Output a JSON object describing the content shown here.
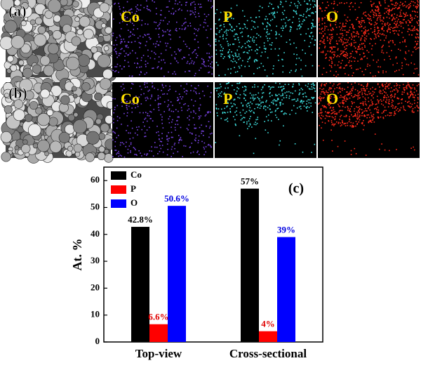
{
  "panels": {
    "rows": [
      {
        "label": "(a)",
        "maps": [
          "Co",
          "P",
          "O"
        ]
      },
      {
        "label": "(b)",
        "maps": [
          "Co",
          "P",
          "O"
        ]
      }
    ],
    "map_colors": [
      "#7a44e6",
      "#3fe0e0",
      "#ff2a1a"
    ]
  },
  "chart_data": {
    "type": "bar",
    "annotation": "(c)",
    "y_label": "At. %",
    "categories": [
      "Top-view",
      "Cross-sectional"
    ],
    "series": [
      {
        "name": "Co",
        "color": "#000000",
        "label_color": "#000000",
        "values": [
          42.8,
          57
        ],
        "value_labels": [
          "42.8%",
          "57%"
        ]
      },
      {
        "name": "P",
        "color": "#ff0000",
        "label_color": "#e00000",
        "values": [
          6.6,
          4
        ],
        "value_labels": [
          "6.6%",
          "4%"
        ]
      },
      {
        "name": "O",
        "color": "#0000ff",
        "label_color": "#0000e0",
        "values": [
          50.6,
          39
        ],
        "value_labels": [
          "50.6%",
          "39%"
        ]
      }
    ],
    "ylim": [
      0,
      65
    ],
    "yticks": [
      0,
      10,
      20,
      30,
      40,
      50,
      60
    ],
    "legend": "upper left"
  }
}
